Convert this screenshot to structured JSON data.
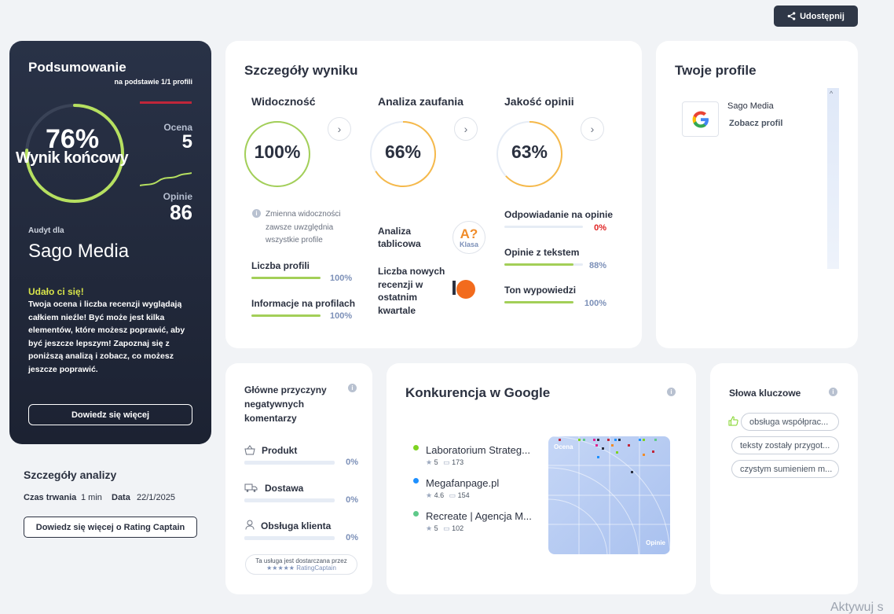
{
  "share_button": {
    "label": "Udostępnij",
    "icon": "share-icon"
  },
  "summary": {
    "title": "Podsumowanie",
    "subtitle": "na podstawie 1/1 profili",
    "score_value": "76%",
    "score_label": "Wynik końcowy",
    "score_fraction": 0.76,
    "rating_label": "Ocena",
    "rating_value": "5",
    "reviews_label": "Opinie",
    "reviews_value": "86",
    "audit_label": "Audyt dla",
    "company": "Sago Media",
    "success_title": "Udało ci się!",
    "success_text": "Twoja ocena i liczba recenzji wyglądają całkiem nieźle! Być może jest kilka elementów, które możesz poprawić, aby być jeszcze lepszym! Zapoznaj się z poniższą analizą i zobacz, co możesz jeszcze poprawić.",
    "learn_more": "Dowiedz się więcej"
  },
  "analysis": {
    "title": "Szczegóły analizy",
    "duration_label": "Czas trwania",
    "duration_value": "1 min",
    "date_label": "Data",
    "date_value": "22/1/2025",
    "button": "Dowiedz się więcej o Rating Captain"
  },
  "details": {
    "title": "Szczegóły wyniku",
    "visibility": {
      "title": "Widoczność",
      "value": "100%",
      "fraction": 1.0,
      "color": "#a3cf58",
      "note": "Zmienna widoczności zawsze uwzględnia wszystkie profile",
      "metrics": [
        {
          "label": "Liczba profili",
          "value": "100%",
          "fraction": 1.0
        },
        {
          "label": "Informacje na profilach",
          "value": "100%",
          "fraction": 1.0
        }
      ]
    },
    "trust": {
      "title": "Analiza zaufania",
      "value": "66%",
      "fraction": 0.66,
      "color": "#f6b94a",
      "table_label": "Analiza tablicowa",
      "class_value": "A?",
      "class_label": "Klasa",
      "new_reviews_label": "Liczba nowych recenzji w ostatnim kwartale"
    },
    "quality": {
      "title": "Jakość opinii",
      "value": "63%",
      "fraction": 0.63,
      "color": "#f6b94a",
      "metrics": [
        {
          "label": "Odpowiadanie na opinie",
          "value": "0%",
          "fraction": 0.0,
          "value_color": "#e02424"
        },
        {
          "label": "Opinie z tekstem",
          "value": "88%",
          "fraction": 0.88,
          "value_color": "#7c90b8"
        },
        {
          "label": "Ton wypowiedzi",
          "value": "100%",
          "fraction": 1.0,
          "value_color": "#7c90b8"
        }
      ]
    }
  },
  "profiles": {
    "title": "Twoje profile",
    "items": [
      {
        "name": "Sago Media",
        "link": "Zobacz profil",
        "icon": "google-icon"
      }
    ]
  },
  "negatives": {
    "title": "Główne przyczyny negatywnych komentarzy",
    "items": [
      {
        "label": "Produkt",
        "value": "0%",
        "icon": "basket-icon"
      },
      {
        "label": "Dostawa",
        "value": "0%",
        "icon": "truck-icon"
      },
      {
        "label": "Obsługa klienta",
        "value": "0%",
        "icon": "person-icon"
      }
    ],
    "provided_by": "Ta usługa jest dostarczana przez",
    "brand_a": "RatingCaptain",
    "stars": "★★★★★"
  },
  "competition": {
    "title": "Konkurencja w Google",
    "items": [
      {
        "name": "Laboratorium Strateg...",
        "rating": "5",
        "reviews": "173",
        "color": "#7ed321"
      },
      {
        "name": "Megafanpage.pl",
        "rating": "4.6",
        "reviews": "154",
        "color": "#1e90ff"
      },
      {
        "name": "Recreate | Agencja M...",
        "rating": "5",
        "reviews": "102",
        "color": "#5fc98a"
      }
    ],
    "map_y_label": "Ocena",
    "map_x_label": "Opinie"
  },
  "keywords": {
    "title": "Słowa kluczowe",
    "items": [
      "obsługa współprac...",
      "teksty zostały przygot...",
      "czystym sumieniem m..."
    ]
  },
  "watermark": "Aktywuj s"
}
